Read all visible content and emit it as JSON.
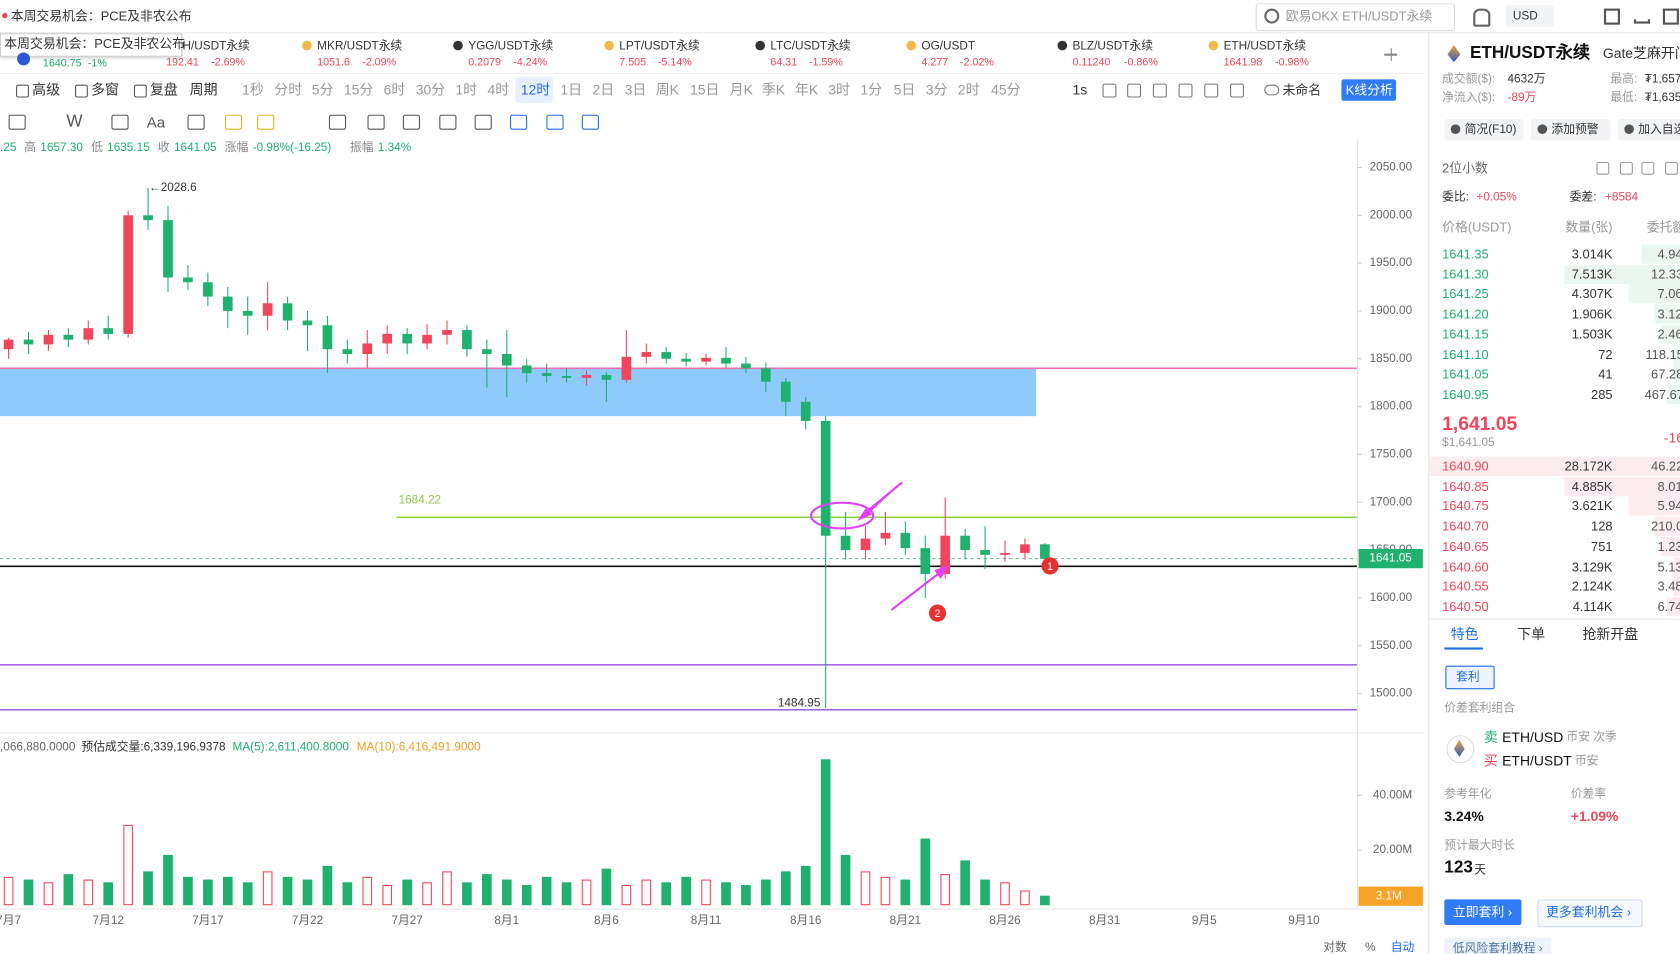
{
  "top": {
    "notice": "本周交易机会：PCE及非农公布",
    "search": "欧易OKX ETH/USDT永续",
    "currency": "USD"
  },
  "tooltip": "本周交易机会：PCE及非农公布",
  "first_tab": {
    "price": "1640.75",
    "change": "-1%"
  },
  "tabs": [
    {
      "name": "BCH/USDT永续",
      "price": "192.41",
      "change": "-2.69%"
    },
    {
      "name": "MKR/USDT永续",
      "price": "1051.6",
      "change": "-2.09%"
    },
    {
      "name": "YGG/USDT永续",
      "price": "0.2079",
      "change": "-4.24%"
    },
    {
      "name": "LPT/USDT永续",
      "price": "7.505",
      "change": "-5.14%"
    },
    {
      "name": "LTC/USDT永续",
      "price": "64.31",
      "change": "-1.59%"
    },
    {
      "name": "OG/USDT",
      "price": "4.277",
      "change": "-2.02%"
    },
    {
      "name": "BLZ/USDT永续",
      "price": "0.11240",
      "change": "-0.86%"
    },
    {
      "name": "ETH/USDT永续",
      "price": "1641.98",
      "change": "-0.98%"
    }
  ],
  "toolbar": {
    "left": [
      "高级",
      "多窗",
      "复盘",
      "周期"
    ],
    "periods": [
      "1秒",
      "分时",
      "5分",
      "15分",
      "6时",
      "30分",
      "1时",
      "4时",
      "12时",
      "1日",
      "2日",
      "3日",
      "周K",
      "15日",
      "月K",
      "季K",
      "年K",
      "3时",
      "1分",
      "5日",
      "3分",
      "2时",
      "45分"
    ],
    "active_index": 8,
    "right": [
      "1s",
      "未命名"
    ],
    "analysis": "K线分析"
  },
  "draw_tools": [
    "W",
    "Aa"
  ],
  "info": [
    ".25",
    "高",
    "1657.30",
    "低",
    "1635.15",
    "收",
    "1641.05",
    "涨幅",
    "-0.98%(-16.25)",
    "振幅",
    "1.34%"
  ],
  "vol_info": [
    ",066,880.0000",
    "预估成交量:6,339,196.9378",
    "MA(5):2,611,400.8000",
    "MA(10):6,416,491.9000"
  ],
  "chart": {
    "up_color": "#f0455a",
    "down_color": "#1fb16d",
    "open": [
      1860,
      1870,
      1865,
      1875,
      1870,
      1882,
      1876,
      2000,
      1995,
      1935,
      1930,
      1915,
      1900,
      1895,
      1908,
      1890,
      1885,
      1860,
      1855,
      1866,
      1876,
      1866,
      1875,
      1880,
      1860,
      1855,
      1843,
      1835,
      1832,
      1830,
      1833,
      1828,
      1852,
      1857,
      1850,
      1847,
      1851,
      1845,
      1840,
      1826,
      1805,
      1785,
      1665,
      1650,
      1662,
      1668,
      1652,
      1625,
      1665,
      1650,
      1645,
      1647,
      1656
    ],
    "high": [
      1872,
      1878,
      1880,
      1882,
      1890,
      1895,
      2005,
      2028.6,
      2010,
      1948,
      1940,
      1925,
      1915,
      1930,
      1915,
      1900,
      1895,
      1870,
      1880,
      1885,
      1882,
      1886,
      1890,
      1885,
      1870,
      1880,
      1850,
      1845,
      1840,
      1838,
      1836,
      1880,
      1866,
      1862,
      1856,
      1855,
      1862,
      1852,
      1846,
      1830,
      1810,
      1790,
      1690,
      1675,
      1690,
      1680,
      1665,
      1705,
      1672,
      1675,
      1660,
      1662,
      1657.3
    ],
    "low": [
      1850,
      1855,
      1858,
      1862,
      1865,
      1870,
      1872,
      1985,
      1920,
      1922,
      1905,
      1882,
      1875,
      1880,
      1880,
      1858,
      1835,
      1845,
      1840,
      1855,
      1855,
      1860,
      1865,
      1852,
      1820,
      1810,
      1825,
      1825,
      1825,
      1822,
      1805,
      1825,
      1845,
      1845,
      1842,
      1843,
      1840,
      1835,
      1815,
      1790,
      1776,
      1484.95,
      1640,
      1640,
      1655,
      1645,
      1600,
      1620,
      1640,
      1630,
      1638,
      1640,
      1635.15
    ],
    "close": [
      1870,
      1865,
      1875,
      1870,
      1882,
      1876,
      2000,
      1995,
      1935,
      1930,
      1915,
      1900,
      1895,
      1908,
      1890,
      1885,
      1860,
      1855,
      1866,
      1876,
      1866,
      1875,
      1880,
      1860,
      1855,
      1843,
      1835,
      1832,
      1830,
      1833,
      1828,
      1852,
      1857,
      1850,
      1847,
      1851,
      1845,
      1840,
      1826,
      1805,
      1785,
      1665,
      1650,
      1662,
      1668,
      1652,
      1625,
      1665,
      1650,
      1645,
      1647,
      1656,
      1641.05
    ],
    "volume": [
      10,
      9,
      8,
      11,
      9,
      8,
      29,
      12,
      18,
      10,
      9,
      10,
      8,
      12,
      10,
      9,
      14,
      8,
      10,
      7,
      9,
      8,
      12,
      8,
      11,
      9,
      7,
      10,
      8,
      9,
      13,
      7,
      9,
      8,
      10,
      9,
      8,
      7,
      9,
      12,
      14,
      53,
      18,
      12,
      10,
      9,
      24,
      11,
      16,
      9,
      8,
      5,
      3.1
    ],
    "volume_label": "3.1M",
    "ylim": [
      1463,
      2057
    ],
    "yticks": [
      {
        "value": 1500,
        "label": "1500.00"
      },
      {
        "value": 1550,
        "label": "1550.00"
      },
      {
        "value": 1600,
        "label": "1600.00"
      },
      {
        "value": 1650,
        "label": "1650.00"
      },
      {
        "value": 1700,
        "label": "1700.00"
      },
      {
        "value": 1750,
        "label": "1750.00"
      },
      {
        "value": 1800,
        "label": "1800.00"
      },
      {
        "value": 1850,
        "label": "1850.00"
      },
      {
        "value": 1900,
        "label": "1900.00"
      },
      {
        "value": 1950,
        "label": "1950.00"
      },
      {
        "value": 2000,
        "label": "2000.00"
      },
      {
        "value": 2050,
        "label": "2050.00"
      }
    ],
    "vlim": [
      0,
      60
    ],
    "vticks": [
      {
        "value": 20,
        "label": "20.00M"
      },
      {
        "value": 40,
        "label": "40.00M"
      }
    ],
    "x_labels": [
      "7月7",
      "7月12",
      "7月17",
      "7月22",
      "7月27",
      "8月1",
      "8月6",
      "8月11",
      "8月16",
      "8月21",
      "8月26",
      "8月31",
      "9月5",
      "9月10"
    ],
    "levels": {
      "zone": [
        1790,
        1840
      ],
      "pink": 1840,
      "support": 1684.22,
      "black": 1633,
      "purple": [
        1530,
        1483
      ]
    },
    "markers": [
      "1",
      "2"
    ]
  },
  "bottom": [
    "对数",
    "%",
    "自动"
  ],
  "panel": {
    "symbol": "ETH/USDT永续",
    "exchange": "Gate芝麻开门",
    "stats": [
      [
        "成交额($):",
        "4632万",
        "最高:",
        "₮1,657"
      ],
      [
        "净流入($):",
        "-89万",
        "最低:",
        "₮1,635"
      ]
    ],
    "buttons": [
      "简况(F10)",
      "添加预警",
      "加入自选"
    ],
    "decimals": "2位小数",
    "ratio": [
      "委比:",
      "+0.05%",
      "委差:",
      "+8584"
    ],
    "headers": [
      "价格(USDT)",
      "数量(张)",
      "委托额"
    ],
    "top_rows": [
      [
        "1641.35",
        "3.014K",
        "4.94"
      ],
      [
        "1641.30",
        "7.513K",
        "12.33"
      ],
      [
        "1641.25",
        "4.307K",
        "7.06"
      ],
      [
        "1641.20",
        "1.906K",
        "3.12"
      ],
      [
        "1641.15",
        "1.503K",
        "2.46"
      ],
      [
        "1641.10",
        "72",
        "118.15"
      ],
      [
        "1641.05",
        "41",
        "67.28"
      ],
      [
        "1640.95",
        "285",
        "467.67"
      ]
    ],
    "last": {
      "price": "1,641.05",
      "usd": "$1,641.05",
      "change": "-16"
    },
    "bottom_rows": [
      [
        "1640.90",
        "28.172K",
        "46.22"
      ],
      [
        "1640.85",
        "4.885K",
        "8.01"
      ],
      [
        "1640.75",
        "3.621K",
        "5.94"
      ],
      [
        "1640.70",
        "128",
        "210.0"
      ],
      [
        "1640.65",
        "751",
        "1.23"
      ],
      [
        "1640.60",
        "3.129K",
        "5.13"
      ],
      [
        "1640.55",
        "2.124K",
        "3.48"
      ],
      [
        "1640.50",
        "4.114K",
        "6.74"
      ]
    ],
    "tabs": [
      "特色",
      "下单",
      "抢新开盘"
    ],
    "arb": "套利",
    "combo": "价差套利组合",
    "legs": [
      [
        "卖",
        "ETH/USD",
        "币安 次季"
      ],
      [
        "买",
        "ETH/USDT",
        "币安"
      ]
    ],
    "metrics": [
      [
        "参考年化",
        "3.24%"
      ],
      [
        "价差率",
        "+1.09%"
      ]
    ],
    "duration_label": "预计最大时长",
    "duration": "123",
    "duration_unit": "天",
    "actions": [
      "立即套利 ›",
      "更多套利机会 ›"
    ],
    "tutorial": "低风险套利教程 ›"
  }
}
